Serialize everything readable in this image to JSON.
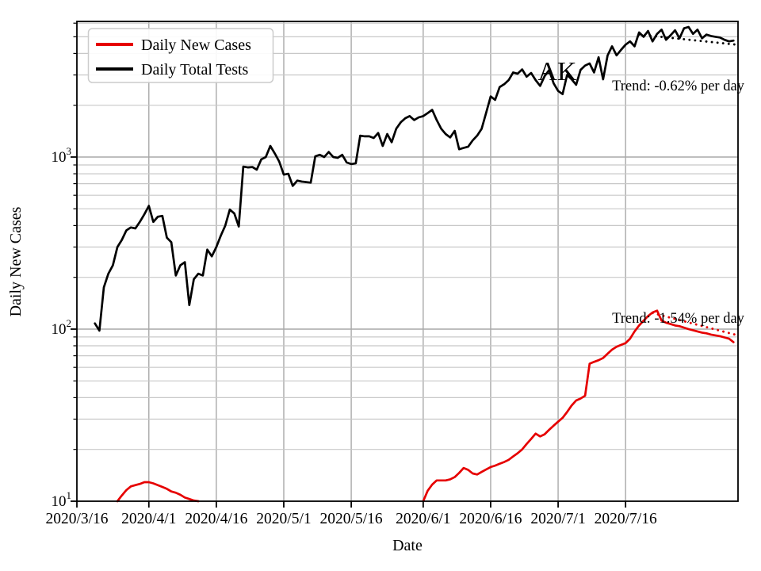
{
  "chart_data": {
    "type": "line",
    "state": "AK",
    "xlabel": "Date",
    "ylabel": "Daily New Cases",
    "y_scale": "log",
    "ylim": [
      10,
      6140
    ],
    "xlim": [
      0,
      147
    ],
    "x_unit": "days since 2020/3/16",
    "x_ticks": [
      {
        "day": 0,
        "label": "2020/3/16"
      },
      {
        "day": 16,
        "label": "2020/4/1"
      },
      {
        "day": 31,
        "label": "2020/4/16"
      },
      {
        "day": 46,
        "label": "2020/5/1"
      },
      {
        "day": 61,
        "label": "2020/5/16"
      },
      {
        "day": 77,
        "label": "2020/6/1"
      },
      {
        "day": 92,
        "label": "2020/6/16"
      },
      {
        "day": 107,
        "label": "2020/7/1"
      },
      {
        "day": 122,
        "label": "2020/7/16"
      }
    ],
    "y_ticks": [
      {
        "value": 10,
        "base": "10",
        "exp": "1"
      },
      {
        "value": 100,
        "base": "10",
        "exp": "2"
      },
      {
        "value": 1000,
        "base": "10",
        "exp": "3"
      }
    ],
    "grid": {
      "major_color": "#a9a9a9",
      "minor_color": "#c8c8c8",
      "major_y_values": [
        100,
        1000
      ],
      "minor_y_values": [
        20,
        30,
        40,
        50,
        60,
        70,
        80,
        90,
        200,
        300,
        400,
        500,
        600,
        700,
        800,
        900,
        2000,
        3000,
        4000,
        5000,
        6000
      ]
    },
    "legend": {
      "position": "upper left",
      "entries": [
        {
          "label": "Daily New Cases",
          "color": "#e60000"
        },
        {
          "label": "Daily Total Tests",
          "color": "#000000"
        }
      ]
    },
    "annotations": {
      "state": {
        "text": "AK",
        "day": 106.8,
        "value": 2800
      },
      "tests_trend": {
        "text": "Trend: -0.62% per day",
        "day": 119,
        "value": 2440
      },
      "cases_trend": {
        "text": "Trend: -1.54% per day",
        "day": 119,
        "value": 109
      }
    },
    "series": [
      {
        "name": "Daily New Cases",
        "color": "#e60000",
        "segments": [
          [
            [
              9,
              10
            ],
            [
              10,
              10.8
            ],
            [
              11,
              11.6
            ],
            [
              12,
              12.2
            ],
            [
              13,
              12.4
            ],
            [
              14,
              12.6
            ],
            [
              15,
              12.9
            ],
            [
              16,
              12.9
            ],
            [
              17,
              12.7
            ],
            [
              18,
              12.4
            ],
            [
              19,
              12.1
            ],
            [
              20,
              11.8
            ],
            [
              21,
              11.4
            ],
            [
              22,
              11.2
            ],
            [
              23,
              10.9
            ],
            [
              24,
              10.5
            ],
            [
              25,
              10.3
            ],
            [
              26,
              10.1
            ],
            [
              27,
              10
            ]
          ],
          [
            [
              77,
              10
            ],
            [
              78,
              11.5
            ],
            [
              79,
              12.5
            ],
            [
              80,
              13.2
            ],
            [
              81,
              13.2
            ],
            [
              82,
              13.2
            ],
            [
              83,
              13.4
            ],
            [
              84,
              13.8
            ],
            [
              85,
              14.6
            ],
            [
              86,
              15.6
            ],
            [
              87,
              15.2
            ],
            [
              88,
              14.5
            ],
            [
              89,
              14.3
            ],
            [
              90,
              14.8
            ],
            [
              91,
              15.3
            ],
            [
              92,
              15.8
            ],
            [
              93,
              16.1
            ],
            [
              94,
              16.5
            ],
            [
              95,
              16.9
            ],
            [
              96,
              17.4
            ],
            [
              97,
              18.2
            ],
            [
              98,
              19
            ],
            [
              99,
              20
            ],
            [
              100,
              21.5
            ],
            [
              101,
              23
            ],
            [
              102,
              24.7
            ],
            [
              103,
              23.8
            ],
            [
              104,
              24.5
            ],
            [
              105,
              26
            ],
            [
              106,
              27.5
            ],
            [
              107,
              29
            ],
            [
              108,
              30.5
            ],
            [
              109,
              33
            ],
            [
              110,
              36
            ],
            [
              111,
              38.5
            ],
            [
              112,
              39.5
            ],
            [
              113,
              41
            ],
            [
              114,
              63
            ],
            [
              115,
              64.5
            ],
            [
              116,
              66
            ],
            [
              117,
              68
            ],
            [
              118,
              72
            ],
            [
              119,
              76
            ],
            [
              120,
              79
            ],
            [
              121,
              81
            ],
            [
              122,
              83
            ],
            [
              123,
              88
            ],
            [
              124,
              97
            ],
            [
              125,
              105
            ],
            [
              126,
              112
            ],
            [
              127,
              119
            ],
            [
              128,
              125
            ],
            [
              129,
              128
            ],
            [
              130,
              112
            ],
            [
              131,
              109
            ],
            [
              132,
              107
            ],
            [
              133,
              105
            ],
            [
              134,
              104
            ],
            [
              135,
              102
            ],
            [
              136,
              100
            ],
            [
              137,
              98.5
            ],
            [
              138,
              97
            ],
            [
              139,
              95.5
            ],
            [
              140,
              94.5
            ],
            [
              141,
              93
            ],
            [
              142,
              92
            ],
            [
              143,
              91
            ],
            [
              144,
              89.5
            ],
            [
              145,
              88
            ],
            [
              146,
              84
            ]
          ]
        ]
      },
      {
        "name": "Daily Total Tests",
        "color": "#000000",
        "segments": [
          [
            [
              4,
              108
            ],
            [
              5,
              98
            ],
            [
              6,
              175
            ],
            [
              7,
              210
            ],
            [
              8,
              235
            ],
            [
              9,
              300
            ],
            [
              10,
              330
            ],
            [
              11,
              375
            ],
            [
              12,
              390
            ],
            [
              13,
              385
            ],
            [
              14,
              420
            ],
            [
              15,
              465
            ],
            [
              16,
              520
            ],
            [
              17,
              420
            ],
            [
              18,
              450
            ],
            [
              19,
              455
            ],
            [
              20,
              340
            ],
            [
              21,
              320
            ],
            [
              22,
              205
            ],
            [
              23,
              235
            ],
            [
              24,
              245
            ],
            [
              25,
              138
            ],
            [
              26,
              195
            ],
            [
              27,
              210
            ],
            [
              28,
              205
            ],
            [
              29,
              290
            ],
            [
              30,
              265
            ],
            [
              31,
              300
            ],
            [
              32,
              350
            ],
            [
              33,
              400
            ],
            [
              34,
              495
            ],
            [
              35,
              470
            ],
            [
              36,
              395
            ],
            [
              37,
              880
            ],
            [
              38,
              870
            ],
            [
              39,
              875
            ],
            [
              40,
              845
            ],
            [
              41,
              970
            ],
            [
              42,
              1000
            ],
            [
              43,
              1160
            ],
            [
              44,
              1050
            ],
            [
              45,
              940
            ],
            [
              46,
              790
            ],
            [
              47,
              800
            ],
            [
              48,
              680
            ],
            [
              49,
              730
            ],
            [
              50,
              720
            ],
            [
              51,
              715
            ],
            [
              52,
              710
            ],
            [
              53,
              1010
            ],
            [
              54,
              1030
            ],
            [
              55,
              1000
            ],
            [
              56,
              1070
            ],
            [
              57,
              1000
            ],
            [
              58,
              990
            ],
            [
              59,
              1030
            ],
            [
              60,
              930
            ],
            [
              61,
              910
            ],
            [
              62,
              920
            ],
            [
              63,
              1330
            ],
            [
              64,
              1320
            ],
            [
              65,
              1320
            ],
            [
              66,
              1290
            ],
            [
              67,
              1380
            ],
            [
              68,
              1160
            ],
            [
              69,
              1360
            ],
            [
              70,
              1220
            ],
            [
              71,
              1460
            ],
            [
              72,
              1590
            ],
            [
              73,
              1680
            ],
            [
              74,
              1730
            ],
            [
              75,
              1640
            ],
            [
              76,
              1700
            ],
            [
              77,
              1730
            ],
            [
              78,
              1800
            ],
            [
              79,
              1880
            ],
            [
              80,
              1640
            ],
            [
              81,
              1460
            ],
            [
              82,
              1360
            ],
            [
              83,
              1300
            ],
            [
              84,
              1420
            ],
            [
              85,
              1110
            ],
            [
              86,
              1130
            ],
            [
              87,
              1150
            ],
            [
              88,
              1250
            ],
            [
              89,
              1330
            ],
            [
              90,
              1460
            ],
            [
              91,
              1810
            ],
            [
              92,
              2250
            ],
            [
              93,
              2150
            ],
            [
              94,
              2550
            ],
            [
              95,
              2650
            ],
            [
              96,
              2800
            ],
            [
              97,
              3100
            ],
            [
              98,
              3050
            ],
            [
              99,
              3230
            ],
            [
              100,
              2930
            ],
            [
              101,
              3080
            ],
            [
              102,
              2800
            ],
            [
              103,
              2590
            ],
            [
              104,
              2950
            ],
            [
              105,
              3200
            ],
            [
              106,
              2680
            ],
            [
              107,
              2420
            ],
            [
              108,
              2320
            ],
            [
              109,
              3000
            ],
            [
              110,
              2830
            ],
            [
              111,
              2630
            ],
            [
              112,
              3210
            ],
            [
              113,
              3400
            ],
            [
              114,
              3500
            ],
            [
              115,
              3100
            ],
            [
              116,
              3800
            ],
            [
              117,
              2830
            ],
            [
              118,
              3900
            ],
            [
              119,
              4400
            ],
            [
              120,
              3900
            ],
            [
              121,
              4200
            ],
            [
              122,
              4500
            ],
            [
              123,
              4700
            ],
            [
              124,
              4400
            ],
            [
              125,
              5300
            ],
            [
              126,
              5000
            ],
            [
              127,
              5400
            ],
            [
              128,
              4700
            ],
            [
              129,
              5200
            ],
            [
              130,
              5500
            ],
            [
              131,
              4800
            ],
            [
              132,
              5100
            ],
            [
              133,
              5450
            ],
            [
              134,
              4900
            ],
            [
              135,
              5600
            ],
            [
              136,
              5700
            ],
            [
              137,
              5200
            ],
            [
              138,
              5500
            ],
            [
              139,
              4900
            ],
            [
              140,
              5150
            ],
            [
              141,
              5050
            ],
            [
              142,
              5000
            ],
            [
              143,
              4950
            ],
            [
              144,
              4800
            ],
            [
              145,
              4700
            ],
            [
              146,
              4750
            ]
          ]
        ]
      }
    ],
    "trend_lines": [
      {
        "series": "Daily Total Tests",
        "label": "Trend: -0.62% per day",
        "rate_pct_per_day": -0.62,
        "color": "#000000",
        "start": [
          125,
          5150
        ],
        "end": [
          147,
          4490
        ]
      },
      {
        "series": "Daily New Cases",
        "label": "Trend: -1.54% per day",
        "rate_pct_per_day": -1.54,
        "color": "#e60000",
        "start": [
          128,
          124
        ],
        "end": [
          147,
          92
        ]
      }
    ]
  }
}
